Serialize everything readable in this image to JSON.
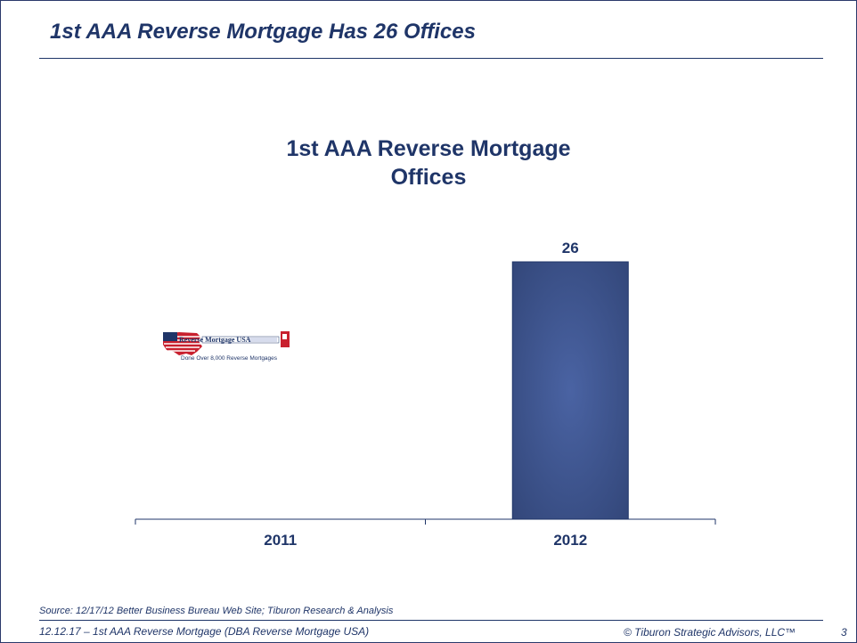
{
  "slide": {
    "title": "1st AAA Reverse Mortgage Has 26 Offices"
  },
  "chart_data": {
    "type": "bar",
    "title_line1": "1st AAA Reverse Mortgage",
    "title_line2": "Offices",
    "categories": [
      "2011",
      "2012"
    ],
    "values": [
      null,
      26
    ],
    "data_labels": [
      "",
      "26"
    ],
    "bar_color": "#3a4f86",
    "ylim": [
      0,
      26
    ]
  },
  "logo": {
    "brand": "Reverse Mortgage USA",
    "tagline": "Done Over 8,000 Reverse Mortgages"
  },
  "footer": {
    "source": "Source:  12/17/12 Better Business Bureau Web Site; Tiburon Research & Analysis",
    "left": "12.12.17 – 1st AAA Reverse Mortgage (DBA Reverse Mortgage USA)",
    "right": "© Tiburon Strategic Advisors, LLC™",
    "page": "3"
  },
  "colors": {
    "primary": "#1f3568",
    "bar": "#3a4f86"
  }
}
